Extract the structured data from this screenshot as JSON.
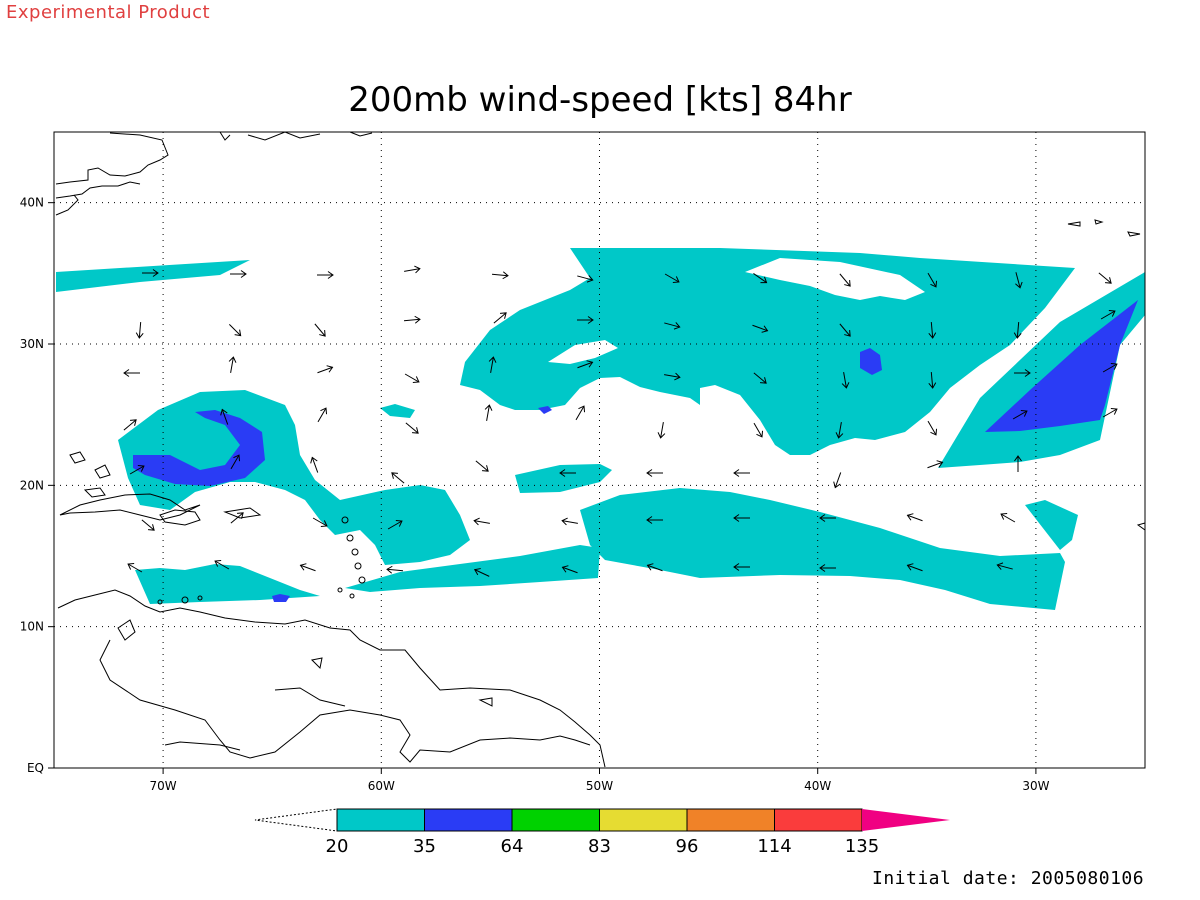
{
  "header": {
    "product_note": "Experimental Product",
    "title": "200mb wind-speed [kts] 84hr"
  },
  "footer": {
    "initial_date": "Initial date: 2005080106"
  },
  "map": {
    "lon_range": [
      -75,
      -25
    ],
    "lat_range": [
      0,
      45
    ],
    "x_ticks": [
      {
        "lon": -70,
        "label": "70W"
      },
      {
        "lon": -60,
        "label": "60W"
      },
      {
        "lon": -50,
        "label": "50W"
      },
      {
        "lon": -40,
        "label": "40W"
      },
      {
        "lon": -30,
        "label": "30W"
      }
    ],
    "y_ticks": [
      {
        "lat": 0,
        "label": "EQ"
      },
      {
        "lat": 10,
        "label": "10N"
      },
      {
        "lat": 20,
        "label": "20N"
      },
      {
        "lat": 30,
        "label": "30N"
      },
      {
        "lat": 40,
        "label": "40N"
      }
    ],
    "grid": true
  },
  "colorbar": {
    "colors": [
      "#00c8c8",
      "#2a3cf5",
      "#00d200",
      "#e6dc32",
      "#f08228",
      "#fa3c3c",
      "#f00082"
    ],
    "labels": [
      "20",
      "35",
      "64",
      "83",
      "96",
      "114",
      "135"
    ]
  }
}
